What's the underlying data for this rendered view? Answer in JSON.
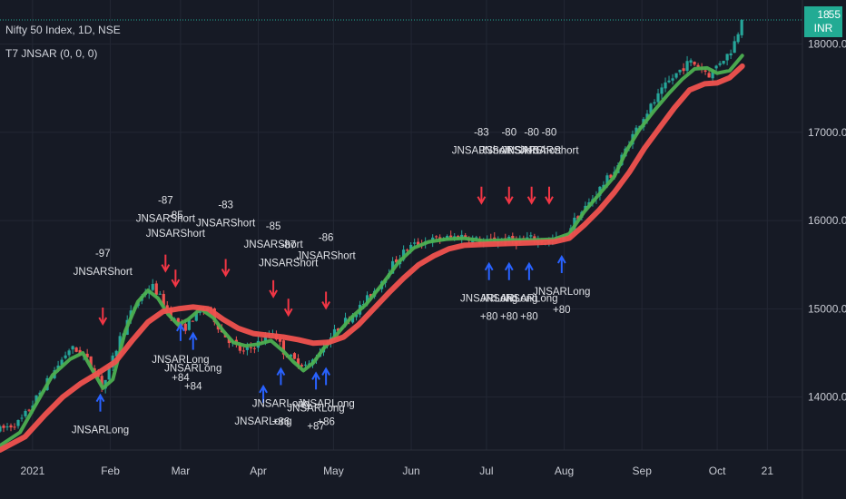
{
  "legend": {
    "symbol": "Nifty 50 Index, 1D, NSE",
    "indicator": "T7 JNSAR (0, 0, 0)"
  },
  "price_badge": {
    "line1": "18",
    "line2": "INR",
    "line3": "55"
  },
  "colors": {
    "background": "#161a25",
    "grid": "#232734",
    "bull": "#26a69a",
    "bear": "#ef5350",
    "fast_line": "#4caf50",
    "slow_line": "#f0524e",
    "short_arrow": "#f23645",
    "long_arrow": "#2962ff",
    "last_price": "#22ab94"
  },
  "chart_data": {
    "type": "candlestick",
    "title": "Nifty 50 Index, 1D, NSE",
    "indicator": "T7 JNSAR (0, 0, 0)",
    "y_axis": {
      "unit": "INR",
      "ticks": [
        14000,
        15000,
        16000,
        17000,
        18000
      ],
      "tick_labels": [
        "14000.00",
        "15000.00",
        "16000.00",
        "17000.00",
        "18000.00"
      ],
      "range": [
        13400,
        18500
      ],
      "position": "right"
    },
    "x_axis": {
      "ticks": [
        "2021",
        "Feb",
        "Mar",
        "Apr",
        "May",
        "Jun",
        "Jul",
        "Aug",
        "Sep",
        "Oct",
        "21"
      ],
      "tick_days": [
        0,
        31,
        59,
        90,
        120,
        151,
        181,
        212,
        243,
        273,
        293
      ],
      "range_days": [
        -13,
        307
      ]
    },
    "last_price": 18338.55,
    "price_path": [
      [
        -13,
        13630
      ],
      [
        -5,
        13720
      ],
      [
        0,
        13920
      ],
      [
        8,
        14270
      ],
      [
        15,
        14560
      ],
      [
        20,
        14480
      ],
      [
        25,
        14300
      ],
      [
        28,
        14110
      ],
      [
        31,
        14350
      ],
      [
        35,
        14680
      ],
      [
        40,
        15000
      ],
      [
        45,
        15200
      ],
      [
        48,
        15250
      ],
      [
        52,
        15080
      ],
      [
        57,
        14850
      ],
      [
        60,
        14760
      ],
      [
        64,
        14900
      ],
      [
        70,
        15020
      ],
      [
        75,
        14750
      ],
      [
        80,
        14600
      ],
      [
        84,
        14500
      ],
      [
        88,
        14580
      ],
      [
        92,
        14650
      ],
      [
        96,
        14750
      ],
      [
        100,
        14520
      ],
      [
        104,
        14420
      ],
      [
        110,
        14350
      ],
      [
        114,
        14500
      ],
      [
        118,
        14650
      ],
      [
        123,
        14820
      ],
      [
        130,
        15000
      ],
      [
        137,
        15230
      ],
      [
        144,
        15520
      ],
      [
        150,
        15700
      ],
      [
        157,
        15770
      ],
      [
        165,
        15800
      ],
      [
        172,
        15830
      ],
      [
        180,
        15750
      ],
      [
        186,
        15790
      ],
      [
        192,
        15770
      ],
      [
        198,
        15800
      ],
      [
        204,
        15760
      ],
      [
        208,
        15780
      ],
      [
        212,
        15800
      ],
      [
        216,
        16000
      ],
      [
        222,
        16200
      ],
      [
        228,
        16430
      ],
      [
        233,
        16600
      ],
      [
        238,
        16900
      ],
      [
        243,
        17150
      ],
      [
        248,
        17350
      ],
      [
        253,
        17550
      ],
      [
        258,
        17700
      ],
      [
        262,
        17800
      ],
      [
        266,
        17750
      ],
      [
        270,
        17650
      ],
      [
        274,
        17800
      ],
      [
        278,
        17900
      ],
      [
        281,
        18100
      ],
      [
        283,
        18340
      ]
    ],
    "series": [
      {
        "name": "JNSAR fast",
        "color": "#4caf50",
        "points": [
          [
            -13,
            13450
          ],
          [
            -5,
            13600
          ],
          [
            2,
            13950
          ],
          [
            8,
            14250
          ],
          [
            15,
            14430
          ],
          [
            20,
            14500
          ],
          [
            24,
            14300
          ],
          [
            28,
            14100
          ],
          [
            32,
            14200
          ],
          [
            37,
            14750
          ],
          [
            42,
            15080
          ],
          [
            46,
            15210
          ],
          [
            50,
            15120
          ],
          [
            54,
            14940
          ],
          [
            58,
            14820
          ],
          [
            62,
            14880
          ],
          [
            67,
            15000
          ],
          [
            72,
            14900
          ],
          [
            76,
            14750
          ],
          [
            80,
            14620
          ],
          [
            85,
            14580
          ],
          [
            90,
            14600
          ],
          [
            95,
            14640
          ],
          [
            100,
            14520
          ],
          [
            104,
            14400
          ],
          [
            108,
            14300
          ],
          [
            112,
            14390
          ],
          [
            116,
            14550
          ],
          [
            121,
            14700
          ],
          [
            127,
            14900
          ],
          [
            133,
            15050
          ],
          [
            140,
            15300
          ],
          [
            146,
            15530
          ],
          [
            152,
            15690
          ],
          [
            158,
            15760
          ],
          [
            165,
            15790
          ],
          [
            172,
            15800
          ],
          [
            180,
            15770
          ],
          [
            190,
            15780
          ],
          [
            200,
            15780
          ],
          [
            208,
            15790
          ],
          [
            214,
            15850
          ],
          [
            220,
            16100
          ],
          [
            226,
            16300
          ],
          [
            232,
            16500
          ],
          [
            237,
            16800
          ],
          [
            242,
            17030
          ],
          [
            248,
            17250
          ],
          [
            254,
            17450
          ],
          [
            259,
            17600
          ],
          [
            264,
            17720
          ],
          [
            269,
            17730
          ],
          [
            273,
            17670
          ],
          [
            278,
            17700
          ],
          [
            283,
            17870
          ]
        ]
      },
      {
        "name": "JNSAR slow",
        "color": "#f0524e",
        "points": [
          [
            -13,
            13400
          ],
          [
            -3,
            13550
          ],
          [
            5,
            13800
          ],
          [
            12,
            14000
          ],
          [
            19,
            14150
          ],
          [
            26,
            14270
          ],
          [
            33,
            14400
          ],
          [
            40,
            14650
          ],
          [
            46,
            14850
          ],
          [
            52,
            14970
          ],
          [
            58,
            15000
          ],
          [
            64,
            15020
          ],
          [
            70,
            15000
          ],
          [
            76,
            14880
          ],
          [
            82,
            14780
          ],
          [
            88,
            14720
          ],
          [
            94,
            14700
          ],
          [
            100,
            14680
          ],
          [
            106,
            14650
          ],
          [
            112,
            14610
          ],
          [
            118,
            14620
          ],
          [
            124,
            14680
          ],
          [
            130,
            14820
          ],
          [
            136,
            15000
          ],
          [
            142,
            15180
          ],
          [
            148,
            15350
          ],
          [
            154,
            15500
          ],
          [
            160,
            15600
          ],
          [
            166,
            15680
          ],
          [
            172,
            15720
          ],
          [
            180,
            15730
          ],
          [
            190,
            15740
          ],
          [
            200,
            15750
          ],
          [
            208,
            15760
          ],
          [
            214,
            15800
          ],
          [
            220,
            15950
          ],
          [
            226,
            16120
          ],
          [
            232,
            16320
          ],
          [
            238,
            16550
          ],
          [
            244,
            16820
          ],
          [
            250,
            17050
          ],
          [
            256,
            17280
          ],
          [
            262,
            17480
          ],
          [
            268,
            17550
          ],
          [
            273,
            17560
          ],
          [
            278,
            17620
          ],
          [
            283,
            17750
          ]
        ]
      }
    ],
    "short_signals": [
      {
        "day": 28,
        "price": 14850,
        "change": "-97",
        "label": "JNSARShort"
      },
      {
        "day": 53,
        "price": 15450,
        "change": "-87",
        "label": "JNSARShort"
      },
      {
        "day": 57,
        "price": 15280,
        "change": "-85",
        "label": "JNSARShort"
      },
      {
        "day": 77,
        "price": 15400,
        "change": "-83",
        "label": "JNSARShort"
      },
      {
        "day": 96,
        "price": 15160,
        "change": "-85",
        "label": "JNSARShort"
      },
      {
        "day": 102,
        "price": 14950,
        "change": "-87",
        "label": "JNSARShort"
      },
      {
        "day": 117,
        "price": 15030,
        "change": "-86",
        "label": "JNSARShort"
      },
      {
        "day": 179,
        "price": 16220,
        "change": "-83",
        "label": "JNSARShort"
      },
      {
        "day": 190,
        "price": 16220,
        "change": "-80",
        "label": "JNSARShort"
      },
      {
        "day": 199,
        "price": 16220,
        "change": "-80",
        "label": "JNSARShort"
      },
      {
        "day": 206,
        "price": 16220,
        "change": "-80",
        "label": "JNSARShort"
      }
    ],
    "long_signals": [
      {
        "day": 27,
        "price": 14000,
        "change": "",
        "label": "JNSARLong"
      },
      {
        "day": 59,
        "price": 14800,
        "change": "+84",
        "label": "JNSARLong"
      },
      {
        "day": 64,
        "price": 14700,
        "change": "+84",
        "label": "JNSARLong"
      },
      {
        "day": 92,
        "price": 14100,
        "change": "",
        "label": "JNSARLong"
      },
      {
        "day": 99,
        "price": 14300,
        "change": "+86",
        "label": "JNSARLong"
      },
      {
        "day": 113,
        "price": 14250,
        "change": "+87",
        "label": "JNSARLong"
      },
      {
        "day": 117,
        "price": 14300,
        "change": "+86",
        "label": "JNSARLong"
      },
      {
        "day": 182,
        "price": 15490,
        "change": "+80",
        "label": "JNSARLong"
      },
      {
        "day": 190,
        "price": 15490,
        "change": "+80",
        "label": "JNSARLong"
      },
      {
        "day": 198,
        "price": 15490,
        "change": "+80",
        "label": "JNSARLong"
      },
      {
        "day": 211,
        "price": 15570,
        "change": "+80",
        "label": "JNSARLong"
      }
    ]
  }
}
